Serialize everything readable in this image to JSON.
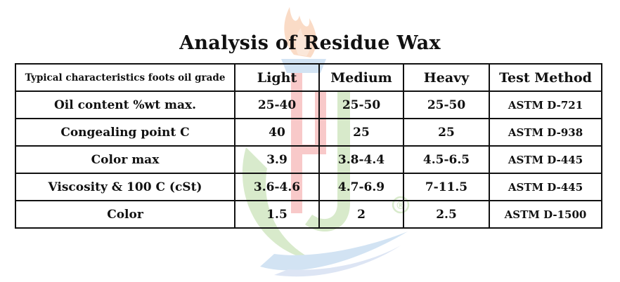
{
  "title": "Analysis of Residue Wax",
  "table": {
    "headers": [
      "Typical characteristics foots oil grade",
      "Light",
      "Medium",
      "Heavy",
      "Test Method"
    ],
    "rows": [
      {
        "characteristic": "Oil content %wt max.",
        "light": "25-40",
        "medium": "25-50",
        "heavy": "25-50",
        "method": "ASTM D-721"
      },
      {
        "characteristic": "Congealing point C",
        "light": "40",
        "medium": "25",
        "heavy": "25",
        "method": "ASTM D-938"
      },
      {
        "characteristic": "Color max",
        "light": "3.9",
        "medium": "3.8-4.4",
        "heavy": "4.5-6.5",
        "method": "ASTM D-445"
      },
      {
        "characteristic": "Viscosity & 100 C (cSt)",
        "light": "3.6-4.6",
        "medium": "4.7-6.9",
        "heavy": "7-11.5",
        "method": "ASTM D-445"
      },
      {
        "characteristic": "Color",
        "light": "1.5",
        "medium": "2",
        "heavy": "2.5",
        "method": "ASTM D-1500"
      }
    ]
  },
  "watermark": {
    "registered_mark": "®",
    "colors": {
      "flame": "#f4b183",
      "letter": "#f08a8a",
      "swoosh_green": "#a9d18e",
      "swoosh_blue": "#9dc3e6"
    }
  }
}
